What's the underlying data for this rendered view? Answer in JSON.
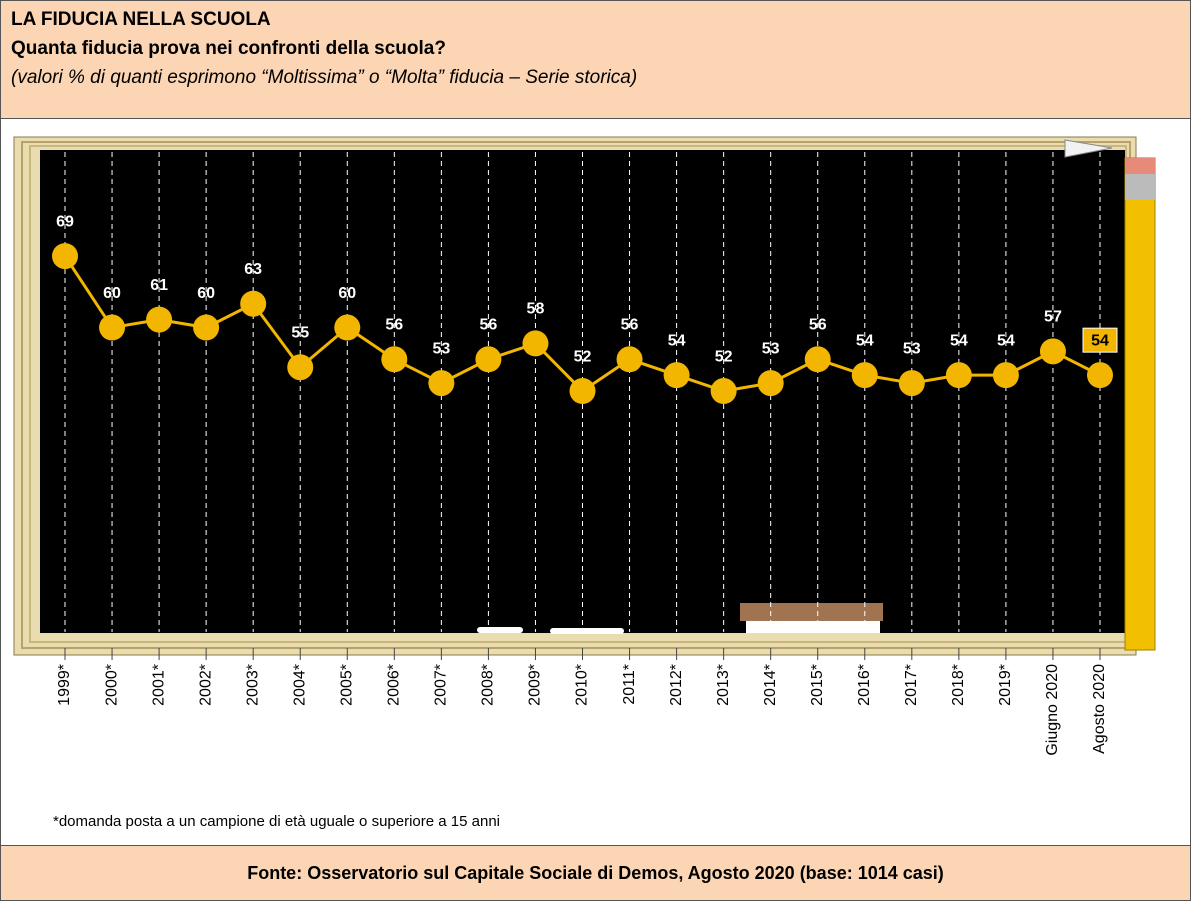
{
  "chart_data": {
    "type": "line",
    "title": "LA FIDUCIA NELLA SCUOLA",
    "subtitle": "Quanta fiducia prova nei confronti della scuola?",
    "caption": "(valori % di quanti esprimono “Moltissima” o “Molta” fiducia – Serie storica)",
    "note": "*domanda posta a un campione di età uguale o superiore a 15 anni",
    "source": "Fonte: Osservatorio sul Capitale Sociale di Demos, Agosto 2020 (base: 1014 casi)",
    "categories": [
      "1999*",
      "2000*",
      "2001*",
      "2002*",
      "2003*",
      "2004*",
      "2005*",
      "2006*",
      "2007*",
      "2008*",
      "2009*",
      "2010*",
      "2011*",
      "2012*",
      "2013*",
      "2014*",
      "2015*",
      "2016*",
      "2017*",
      "2018*",
      "2019*",
      "Giugno 2020",
      "Agosto 2020"
    ],
    "values": [
      69,
      60,
      61,
      60,
      63,
      55,
      60,
      56,
      53,
      56,
      58,
      52,
      56,
      54,
      52,
      53,
      56,
      54,
      53,
      54,
      54,
      57,
      54
    ],
    "color": "#f2b600",
    "ylim": [
      20,
      83
    ]
  }
}
